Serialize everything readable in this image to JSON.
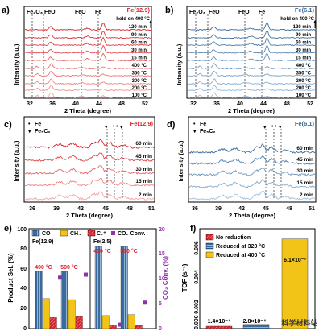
{
  "colors": {
    "red": "#d9232d",
    "blue": "#3a6b9c",
    "purple": "#8e33a8",
    "yellow": "#f2c418",
    "red_light": "#f4a6a4",
    "blue_light": "#9fc3e3",
    "gray": "#5b5b5b"
  },
  "panels": {
    "a": {
      "letter": "a)",
      "title": "Fe(12.9)",
      "note": "hold on 400 °C",
      "phases": [
        "Fe₂O₃",
        "FeO",
        "FeO",
        "Fe"
      ],
      "traces": [
        "120 min",
        "90 min",
        "60 min",
        "30 min",
        "15 min",
        "400 °C",
        "350 °C",
        "300 °C",
        "200 °C",
        "100 °C"
      ],
      "xlabel": "2 Theta (degree)",
      "ylabel": "Intensity (a.u.)",
      "xticks": [
        "32",
        "36",
        "40",
        "44",
        "48",
        "52"
      ],
      "xlim": [
        31,
        53
      ],
      "color": "red"
    },
    "b": {
      "letter": "b)",
      "title": "Fe(6.1)",
      "note": "hold on 400 °C",
      "phases": [
        "Fe₂O₃",
        "FeO",
        "FeO",
        "Fe"
      ],
      "traces": [
        "120 min",
        "90 min",
        "60 min",
        "30 min",
        "15 min",
        "400 °C",
        "350 °C",
        "300 °C",
        "200 °C",
        "100 °C"
      ],
      "xlabel": "2 Theta (degree)",
      "ylabel": "Intensity (a.u.)",
      "xticks": [
        "32",
        "36",
        "40",
        "44",
        "48",
        "52"
      ],
      "xlim": [
        31,
        53
      ],
      "color": "blue"
    },
    "c": {
      "letter": "c)",
      "title": "Fe(12.9)",
      "legend": [
        {
          "symbol": "•",
          "label": "Fe"
        },
        {
          "symbol": "▾",
          "label": "Fe₅C₂"
        }
      ],
      "traces": [
        "60 min",
        "45 min",
        "30 min",
        "15 min",
        "2 min"
      ],
      "xlabel": "2 Theta (degree)",
      "ylabel": "Intensity (a.u.)",
      "xticks": [
        "36",
        "39",
        "42",
        "45",
        "48",
        "51"
      ],
      "xlim": [
        35,
        51
      ],
      "color": "red"
    },
    "d": {
      "letter": "d)",
      "title": "Fe(6.1)",
      "legend": [
        {
          "symbol": "•",
          "label": "Fe"
        },
        {
          "symbol": "▾",
          "label": "Fe₅C₂"
        }
      ],
      "traces": [
        "60 min",
        "45 min",
        "30 min",
        "15 min",
        "2 min"
      ],
      "xlabel": "2 Theta (degree)",
      "ylabel": "Intensity (a.u.)",
      "xticks": [
        "36",
        "39",
        "42",
        "45",
        "48",
        "51"
      ],
      "xlim": [
        35,
        51
      ],
      "color": "blue"
    },
    "e": {
      "letter": "e)",
      "legend": [
        "CO",
        "CH₄",
        "C₂⁺",
        "CO₂ Conv."
      ],
      "groups": [
        "Fe(12.9)",
        "Fe(2.5)"
      ],
      "temps": [
        "400 °C",
        "500 °C",
        "400 °C",
        "500 °C"
      ],
      "ylabel": "Product Sel. (%)",
      "y2label": "CO₂ Conv. (%)",
      "yticks": [
        "0",
        "20",
        "40",
        "60",
        "80",
        "100"
      ],
      "y2ticks": [
        "0",
        "5",
        "10",
        "15",
        "20"
      ]
    },
    "f": {
      "letter": "f)",
      "legend": [
        "No reduction",
        "Reduced at 320 °C",
        "Reduced at 400 °C"
      ],
      "ylabel": "TOF (s⁻¹)",
      "yticks": [
        "0.000",
        "0.002",
        "0.004",
        "0.006"
      ],
      "value_labels": [
        "1.4×10⁻⁴",
        "2.8×10⁻⁴",
        "6.1×10⁻³"
      ]
    }
  },
  "watermark": "科学材料站",
  "chart_data": [
    {
      "panel": "e",
      "type": "bar",
      "title": "",
      "categories": [
        "Fe(12.9) 400 °C",
        "Fe(12.9) 500 °C",
        "Fe(2.5) 400 °C",
        "Fe(2.5) 500 °C"
      ],
      "ylabel": "Product Sel. (%)",
      "ylim": [
        0,
        100
      ],
      "series": [
        {
          "name": "CO",
          "values": [
            57,
            57,
            82,
            82
          ]
        },
        {
          "name": "CH₄",
          "values": [
            30,
            29,
            13,
            14
          ]
        },
        {
          "name": "C₂⁺",
          "values": [
            11,
            12,
            3,
            3
          ]
        }
      ],
      "secondary": {
        "name": "CO₂ Conv.",
        "ylabel": "CO₂ Conv. (%)",
        "ylim": [
          0,
          20
        ],
        "values": [
          10.2,
          10.8,
          0.8,
          5.2
        ]
      },
      "grid": false,
      "legend": "top"
    },
    {
      "panel": "f",
      "type": "bar",
      "title": "",
      "categories": [
        "No reduction",
        "Reduced at 320 °C",
        "Reduced at 400 °C"
      ],
      "ylabel": "TOF (s⁻¹)",
      "ylim": [
        0,
        0.0068
      ],
      "values": [
        0.00014,
        0.00028,
        0.0061
      ],
      "grid": false,
      "legend": "top-left"
    }
  ]
}
